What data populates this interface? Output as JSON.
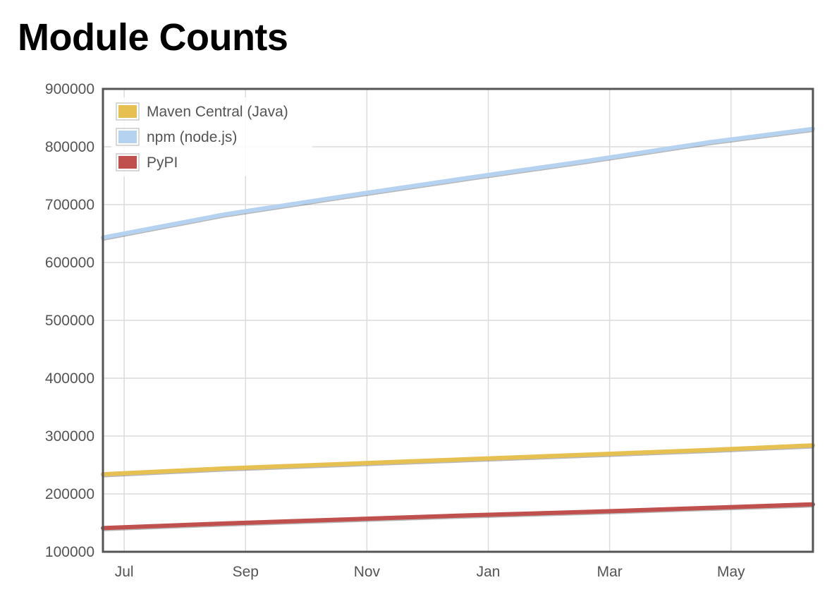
{
  "chart_data": {
    "type": "line",
    "title": "Module Counts",
    "xlabel": "",
    "ylabel": "",
    "x_ticks": [
      "Jul",
      "Sep",
      "Nov",
      "Jan",
      "Mar",
      "May"
    ],
    "x_range_months": [
      0,
      11.7
    ],
    "x_tick_positions_months": [
      0.35,
      2.35,
      4.35,
      6.35,
      8.35,
      10.35
    ],
    "ylim": [
      100000,
      900000
    ],
    "y_ticks": [
      "900000",
      "800000",
      "700000",
      "600000",
      "500000",
      "400000",
      "300000",
      "200000",
      "100000"
    ],
    "grid": true,
    "legend_position": "top-left",
    "series": [
      {
        "name": "Maven Central (Java)",
        "color": "#e6c050",
        "x": [
          0,
          2,
          4,
          6,
          8,
          10,
          11.7
        ],
        "values": [
          234000,
          244000,
          252000,
          260000,
          268000,
          276000,
          284000
        ]
      },
      {
        "name": "npm (node.js)",
        "color": "#b5d3f0",
        "x": [
          0,
          2,
          4,
          6,
          8,
          10,
          11.7
        ],
        "values": [
          643000,
          683000,
          715000,
          746000,
          776000,
          808000,
          831000
        ]
      },
      {
        "name": "PyPI",
        "color": "#c0504d",
        "x": [
          0,
          2,
          4,
          6,
          8,
          10,
          11.7
        ],
        "values": [
          141000,
          149000,
          156000,
          163000,
          169000,
          176000,
          182000
        ]
      }
    ]
  }
}
